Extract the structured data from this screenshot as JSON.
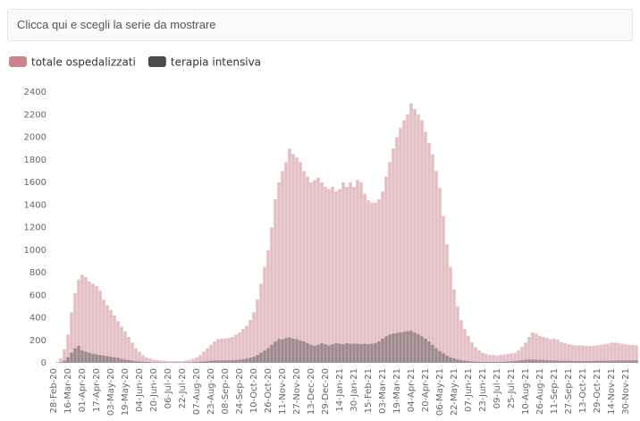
{
  "select_box": {
    "placeholder": "Clicca qui e scegli la serie da mostrare"
  },
  "chart_data": {
    "type": "bar",
    "categories": [
      "28-Feb-20",
      null,
      null,
      null,
      "16-Mar-20",
      null,
      null,
      null,
      "01-Apr-20",
      null,
      null,
      null,
      "17-Apr-20",
      null,
      null,
      null,
      "03-May-20",
      null,
      null,
      null,
      "19-May-20",
      null,
      null,
      null,
      "04-Jun-20",
      null,
      null,
      null,
      "20-Jun-20",
      null,
      null,
      null,
      "06-Jul-20",
      null,
      null,
      null,
      "22-Jul-20",
      null,
      null,
      null,
      "07-Aug-20",
      null,
      null,
      null,
      "23-Aug-20",
      null,
      null,
      null,
      "08-Sep-20",
      null,
      null,
      null,
      "24-Sep-20",
      null,
      null,
      null,
      "10-Oct-20",
      null,
      null,
      null,
      "26-Oct-20",
      null,
      null,
      null,
      "11-Nov-20",
      null,
      null,
      null,
      "27-Nov-20",
      null,
      null,
      null,
      "13-Dec-20",
      null,
      null,
      null,
      "29-Dec-20",
      null,
      null,
      null,
      "14-Jan-21",
      null,
      null,
      null,
      "30-Jan-21",
      null,
      null,
      null,
      "15-Feb-21",
      null,
      null,
      null,
      "03-Mar-21",
      null,
      null,
      null,
      "19-Mar-21",
      null,
      null,
      null,
      "04-Apr-21",
      null,
      null,
      null,
      "20-Apr-21",
      null,
      null,
      null,
      "06-May-21",
      null,
      null,
      null,
      "22-May-21",
      null,
      null,
      null,
      "07-Jun-21",
      null,
      null,
      null,
      "23-Jun-21",
      null,
      null,
      null,
      "09-Jul-21",
      null,
      null,
      null,
      "25-Jul-21",
      null,
      null,
      null,
      "10-Aug-21",
      null,
      null,
      null,
      "26-Aug-21",
      null,
      null,
      null,
      "11-Sep-21",
      null,
      null,
      null,
      "27-Sep-21",
      null,
      null,
      null,
      "13-Oct-21",
      null,
      null,
      null,
      "29-Oct-21",
      null,
      null,
      null,
      "14-Nov-21",
      null,
      null,
      null,
      "30-Nov-21",
      null,
      null,
      null
    ],
    "series": [
      {
        "name": "totale ospedalizzati",
        "color": "#c9838c",
        "bar_color": "#e3bfc4",
        "values": [
          0,
          10,
          40,
          120,
          250,
          450,
          620,
          740,
          780,
          760,
          720,
          700,
          680,
          640,
          560,
          510,
          470,
          420,
          370,
          320,
          280,
          230,
          180,
          130,
          100,
          70,
          50,
          40,
          30,
          25,
          20,
          20,
          15,
          15,
          15,
          15,
          15,
          20,
          25,
          35,
          50,
          70,
          100,
          130,
          160,
          190,
          210,
          215,
          215,
          220,
          230,
          250,
          270,
          300,
          330,
          380,
          450,
          560,
          700,
          850,
          1000,
          1200,
          1450,
          1600,
          1700,
          1780,
          1900,
          1850,
          1820,
          1780,
          1700,
          1650,
          1600,
          1620,
          1640,
          1600,
          1560,
          1540,
          1560,
          1520,
          1540,
          1600,
          1560,
          1600,
          1560,
          1620,
          1600,
          1500,
          1440,
          1420,
          1420,
          1450,
          1520,
          1650,
          1780,
          1900,
          2000,
          2080,
          2150,
          2200,
          2300,
          2250,
          2200,
          2150,
          2050,
          1950,
          1850,
          1700,
          1550,
          1300,
          1050,
          850,
          650,
          500,
          380,
          300,
          240,
          180,
          140,
          110,
          90,
          80,
          70,
          70,
          65,
          70,
          75,
          80,
          85,
          90,
          110,
          140,
          180,
          230,
          270,
          260,
          240,
          230,
          220,
          210,
          215,
          205,
          185,
          175,
          165,
          160,
          155,
          155,
          155,
          150,
          150,
          150,
          155,
          160,
          165,
          170,
          180,
          180,
          175,
          170,
          165,
          160,
          160,
          155
        ]
      },
      {
        "name": "terapia intensiva",
        "color": "#4a4a50",
        "bar_color": "rgba(70,70,76,0.45)",
        "values": [
          0,
          0,
          5,
          20,
          50,
          90,
          130,
          150,
          110,
          100,
          90,
          80,
          75,
          70,
          65,
          60,
          55,
          50,
          45,
          35,
          30,
          25,
          20,
          15,
          12,
          10,
          8,
          6,
          5,
          5,
          4,
          4,
          4,
          4,
          4,
          4,
          4,
          4,
          5,
          6,
          8,
          10,
          12,
          15,
          18,
          20,
          22,
          22,
          22,
          22,
          24,
          26,
          28,
          32,
          38,
          45,
          55,
          70,
          90,
          110,
          130,
          160,
          190,
          210,
          210,
          220,
          225,
          215,
          210,
          200,
          190,
          175,
          160,
          150,
          160,
          175,
          165,
          155,
          165,
          175,
          170,
          165,
          175,
          170,
          170,
          170,
          165,
          170,
          165,
          170,
          175,
          190,
          215,
          235,
          250,
          260,
          265,
          270,
          275,
          280,
          285,
          270,
          255,
          235,
          215,
          190,
          160,
          130,
          105,
          85,
          65,
          50,
          40,
          30,
          25,
          20,
          16,
          13,
          11,
          10,
          9,
          9,
          8,
          8,
          8,
          9,
          10,
          12,
          14,
          16,
          20,
          24,
          28,
          30,
          30,
          28,
          27,
          26,
          24,
          22,
          21,
          20,
          19,
          18,
          18,
          18,
          17,
          17,
          17,
          17,
          17,
          17,
          18,
          18,
          19,
          20,
          20,
          21,
          21,
          21,
          22,
          22,
          22,
          22
        ]
      }
    ],
    "ylim": [
      0,
      2400
    ],
    "yticks": [
      0,
      200,
      400,
      600,
      800,
      1000,
      1200,
      1400,
      1600,
      1800,
      2000,
      2200,
      2400
    ],
    "grid": false
  }
}
